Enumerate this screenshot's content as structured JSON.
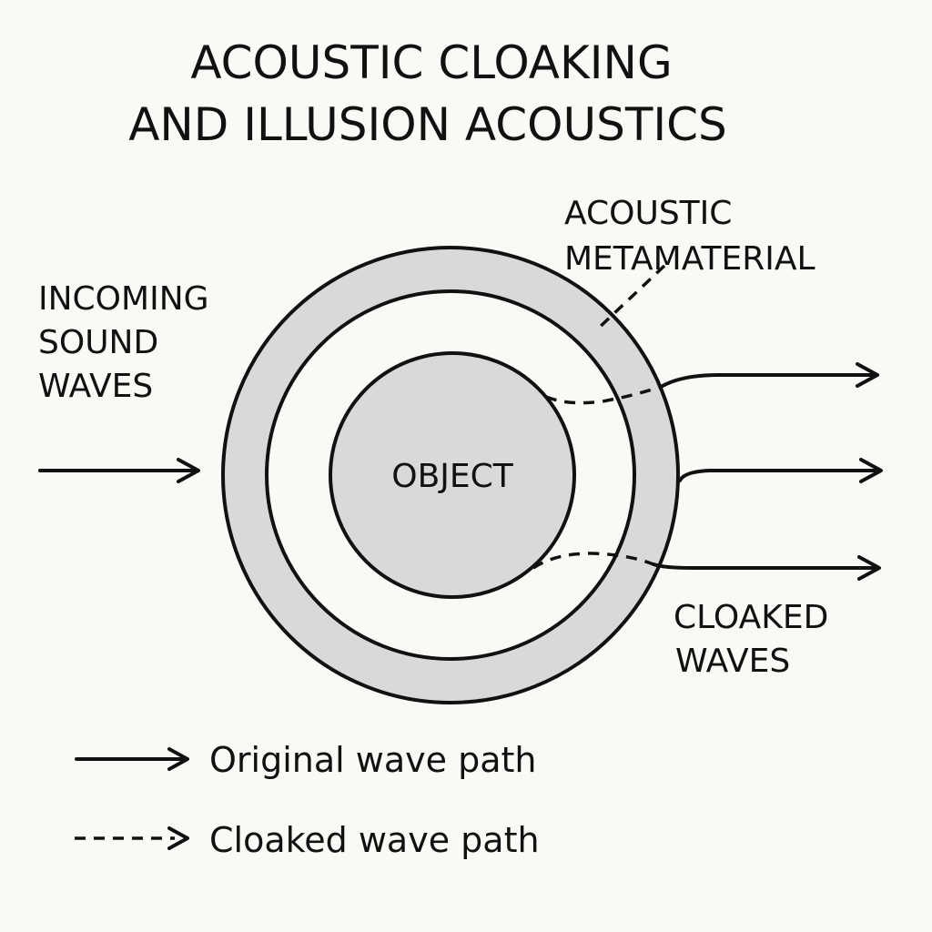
{
  "title": {
    "line1": "ACOUSTIC CLOAKING",
    "line2": "AND ILLUSION ACOUSTICS"
  },
  "labels": {
    "incoming": [
      "INCOMING",
      "SOUND",
      "WAVES"
    ],
    "metamaterial": [
      "ACOUSTIC",
      "METAMATERIAL"
    ],
    "object": "OBJECT",
    "cloaked": [
      "CLOAKED",
      "WAVES"
    ]
  },
  "legend": {
    "original": "Original wave path",
    "cloaked": "Cloaked wave path"
  },
  "colors": {
    "background": "#faf9f6",
    "ink": "#111111",
    "fill": "#d8d9da"
  }
}
